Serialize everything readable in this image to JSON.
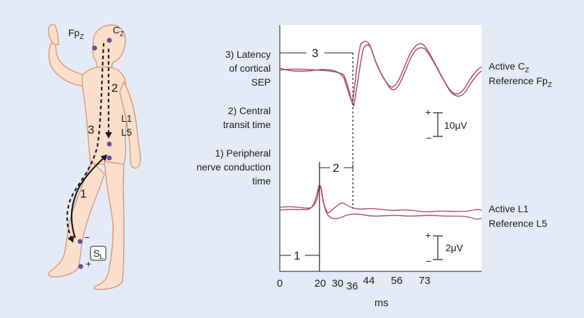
{
  "colors": {
    "background": "#e4ebf6",
    "plot_area": "#ffffff",
    "body_fill": "#fbdfcb",
    "body_outline": "#d59b80",
    "electrode": "#6b4c9a",
    "trace": "#b04a6e",
    "ink": "#1a1a1a"
  },
  "figure": {
    "electrodes": {
      "fpz_main": "Fp",
      "fpz_sub": "Z",
      "cz_main": "C",
      "cz_sub": "Z",
      "l1": "L1",
      "l5": "L5",
      "stim_main": "S",
      "stim_sub": "L",
      "stim_minus": "−",
      "stim_plus": "+"
    },
    "path_numbers": {
      "one": "1",
      "two": "2",
      "three": "3"
    },
    "annotations": {
      "latency": [
        "3) Latency",
        "of cortical",
        "SEP"
      ],
      "central": [
        "2) Central",
        "transit time"
      ],
      "peripheral": [
        "1) Peripheral",
        "nerve conduction",
        "time"
      ]
    },
    "channels": {
      "cortical_active_main": "Active C",
      "cortical_active_sub": "Z",
      "cortical_ref_main": "Reference Fp",
      "cortical_ref_sub": "Z",
      "lumbar_active": "Active L1",
      "lumbar_ref": "Reference L5"
    },
    "scales": {
      "upper_label": "10μV",
      "lower_label": "2μV",
      "plus": "+",
      "minus": "−"
    },
    "markers": {
      "one": "1",
      "two": "2",
      "three": "3"
    },
    "x_axis": {
      "ticks": [
        "0",
        "20",
        "30",
        "36",
        "44",
        "56",
        "73"
      ],
      "label": "ms"
    }
  }
}
